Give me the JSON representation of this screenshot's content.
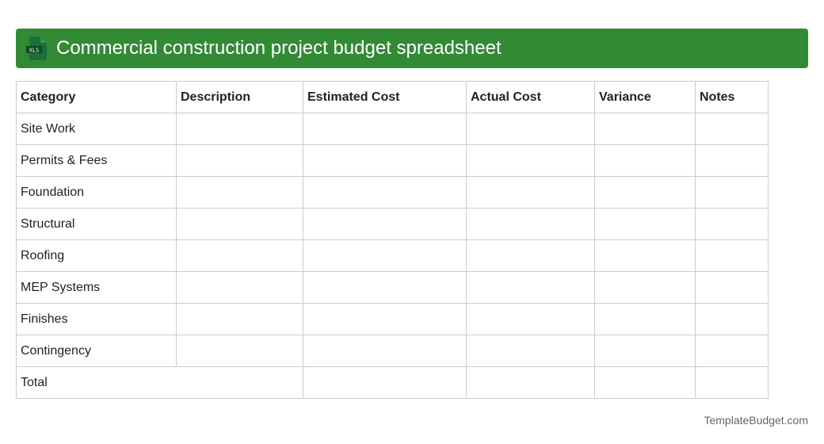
{
  "header": {
    "title": "Commercial construction project budget spreadsheet",
    "icon": "xls-file-icon",
    "icon_text": "XLS",
    "color": "#338a35"
  },
  "table": {
    "columns": [
      "Category",
      "Description",
      "Estimated Cost",
      "Actual Cost",
      "Variance",
      "Notes"
    ],
    "rows": [
      "Site Work",
      "Permits & Fees",
      "Foundation",
      "Structural",
      "Roofing",
      "MEP Systems",
      "Finishes",
      "Contingency"
    ],
    "total_label": "Total"
  },
  "footer": {
    "brand": "TemplateBudget.com"
  }
}
